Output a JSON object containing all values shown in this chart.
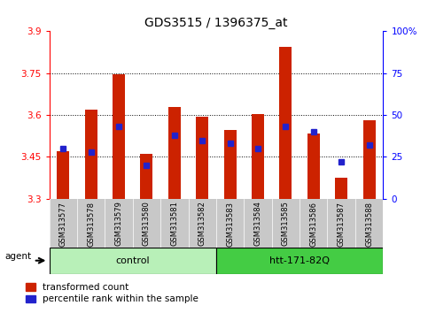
{
  "title": "GDS3515 / 1396375_at",
  "samples": [
    "GSM313577",
    "GSM313578",
    "GSM313579",
    "GSM313580",
    "GSM313581",
    "GSM313582",
    "GSM313583",
    "GSM313584",
    "GSM313585",
    "GSM313586",
    "GSM313587",
    "GSM313588"
  ],
  "red_values": [
    3.47,
    3.62,
    3.745,
    3.46,
    3.63,
    3.595,
    3.545,
    3.605,
    3.845,
    3.535,
    3.375,
    3.58
  ],
  "blue_values": [
    30,
    28,
    43,
    20,
    38,
    35,
    33,
    30,
    43,
    40,
    22,
    32
  ],
  "y_min": 3.3,
  "y_max": 3.9,
  "y_ticks": [
    3.3,
    3.45,
    3.6,
    3.75,
    3.9
  ],
  "y_tick_labels": [
    "3.3",
    "3.45",
    "3.6",
    "3.75",
    "3.9"
  ],
  "right_y_ticks": [
    0,
    25,
    50,
    75,
    100
  ],
  "right_y_labels": [
    "0",
    "25",
    "50",
    "75",
    "100%"
  ],
  "ctrl_color_light": "#c8f0c8",
  "ctrl_color": "#90ee90",
  "htt_color": "#44cc44",
  "bar_width": 0.45,
  "red_color": "#cc2200",
  "blue_color": "#2222cc",
  "legend_red_label": "transformed count",
  "legend_blue_label": "percentile rank within the sample",
  "xtick_bg": "#c8c8c8",
  "plot_border_color": "#000000"
}
